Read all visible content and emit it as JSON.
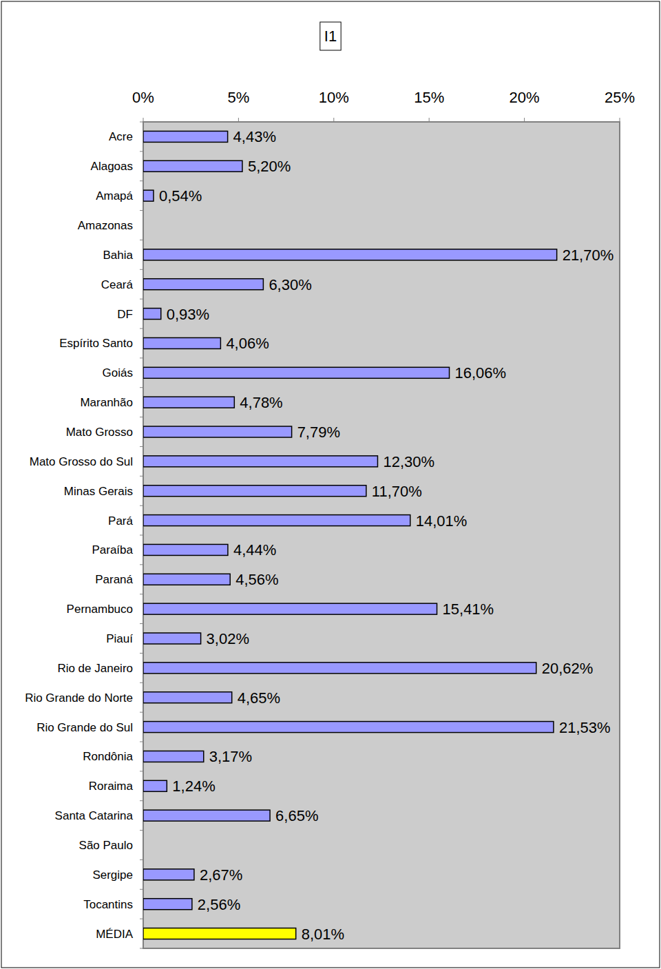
{
  "chart_data": {
    "type": "bar",
    "title": "I1",
    "orientation": "horizontal",
    "categories": [
      "Acre",
      "Alagoas",
      "Amapá",
      "Amazonas",
      "Bahia",
      "Ceará",
      "DF",
      "Espírito Santo",
      "Goiás",
      "Maranhão",
      "Mato Grosso",
      "Mato Grosso do Sul",
      "Minas Gerais",
      "Pará",
      "Paraíba",
      "Paraná",
      "Pernambuco",
      "Piauí",
      "Rio de Janeiro",
      "Rio Grande do Norte",
      "Rio Grande do Sul",
      "Rondônia",
      "Roraima",
      "Santa Catarina",
      "São Paulo",
      "Sergipe",
      "Tocantins",
      "MÉDIA"
    ],
    "values": [
      4.43,
      5.2,
      0.54,
      null,
      21.7,
      6.3,
      0.93,
      4.06,
      16.06,
      4.78,
      7.79,
      12.3,
      11.7,
      14.01,
      4.44,
      4.56,
      15.41,
      3.02,
      20.62,
      4.65,
      21.53,
      3.17,
      1.24,
      6.65,
      null,
      2.67,
      2.56,
      8.01
    ],
    "value_labels": [
      "4,43%",
      "5,20%",
      "0,54%",
      null,
      "21,70%",
      "6,30%",
      "0,93%",
      "4,06%",
      "16,06%",
      "4,78%",
      "7,79%",
      "12,30%",
      "11,70%",
      "14,01%",
      "4,44%",
      "4,56%",
      "15,41%",
      "3,02%",
      "20,62%",
      "4,65%",
      "21,53%",
      "3,17%",
      "1,24%",
      "6,65%",
      null,
      "2,67%",
      "2,56%",
      "8,01%"
    ],
    "colors": [
      "#9999ff",
      "#9999ff",
      "#9999ff",
      "#9999ff",
      "#9999ff",
      "#9999ff",
      "#9999ff",
      "#9999ff",
      "#9999ff",
      "#9999ff",
      "#9999ff",
      "#9999ff",
      "#9999ff",
      "#9999ff",
      "#9999ff",
      "#9999ff",
      "#9999ff",
      "#9999ff",
      "#9999ff",
      "#9999ff",
      "#9999ff",
      "#9999ff",
      "#9999ff",
      "#9999ff",
      "#9999ff",
      "#9999ff",
      "#9999ff",
      "#ffff00"
    ],
    "xlim": [
      0,
      25
    ],
    "xticks": [
      {
        "value": 0,
        "label": "0%"
      },
      {
        "value": 5,
        "label": "5%"
      },
      {
        "value": 10,
        "label": "10%"
      },
      {
        "value": 15,
        "label": "15%"
      },
      {
        "value": 20,
        "label": "20%"
      },
      {
        "value": 25,
        "label": "25%"
      }
    ],
    "grid": false,
    "data_labels": true
  }
}
